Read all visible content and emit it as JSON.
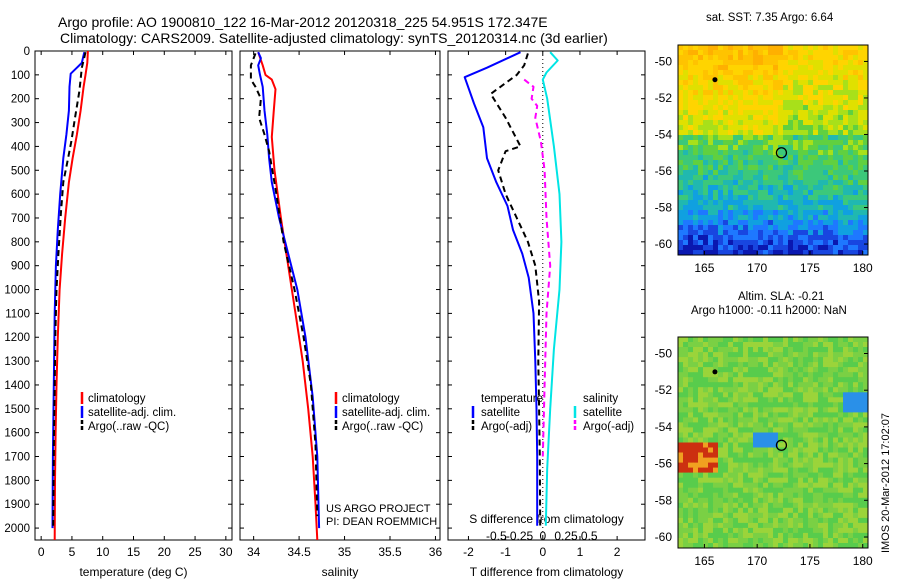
{
  "title": {
    "line1": "Argo profile: AO 1900810_122 16-Mar-2012 20120318_225 54.951S 172.347E",
    "line2": "Climatology: CARS2009. Satellite-adjusted climatology: synTS_20120314.nc (3d earlier)"
  },
  "credit": {
    "line1": "US ARGO PROJECT",
    "line2": "PI: DEAN ROEMMICH"
  },
  "stamp": "IMOS 20-Mar-2012 17:02:07",
  "colors": {
    "red": "#ff0000",
    "blue": "#0000ff",
    "black": "#000000",
    "cyan": "#00e5e5",
    "magenta": "#ff00ff"
  },
  "chart_data": [
    {
      "type": "line",
      "xlabel": "temperature (deg C)",
      "xlim": [
        -1,
        31
      ],
      "xticks": [
        "0",
        "5",
        "10",
        "15",
        "20",
        "25",
        "30"
      ],
      "xtick_values": [
        0,
        5,
        10,
        15,
        20,
        25,
        30
      ],
      "ylim": [
        0,
        2050
      ],
      "yticks": [
        "0",
        "100",
        "200",
        "300",
        "400",
        "500",
        "600",
        "700",
        "800",
        "900",
        "1000",
        "1100",
        "1200",
        "1300",
        "1400",
        "1500",
        "1600",
        "1700",
        "1800",
        "1900",
        "2000"
      ],
      "ytick_values": [
        0,
        100,
        200,
        300,
        400,
        500,
        600,
        700,
        800,
        900,
        1000,
        1100,
        1200,
        1300,
        1400,
        1500,
        1600,
        1700,
        1800,
        1900,
        2000
      ],
      "legend": [
        "climatology",
        "satellite-adj. clim.",
        "Argo(..raw -QC)"
      ],
      "series": [
        {
          "name": "climatology",
          "color": "red",
          "dash": false,
          "points": [
            [
              7.6,
              0
            ],
            [
              7.5,
              50
            ],
            [
              7.2,
              100
            ],
            [
              6.9,
              150
            ],
            [
              6.4,
              250
            ],
            [
              5.8,
              350
            ],
            [
              5.1,
              450
            ],
            [
              4.5,
              550
            ],
            [
              3.9,
              700
            ],
            [
              3.4,
              850
            ],
            [
              3.0,
              1000
            ],
            [
              2.7,
              1200
            ],
            [
              2.5,
              1400
            ],
            [
              2.35,
              1600
            ],
            [
              2.25,
              1800
            ],
            [
              2.2,
              2050
            ]
          ]
        },
        {
          "name": "satellite-adj. clim.",
          "color": "blue",
          "dash": false,
          "points": [
            [
              7.0,
              5
            ],
            [
              6.6,
              50
            ],
            [
              5.8,
              70
            ],
            [
              4.8,
              95
            ],
            [
              4.6,
              150
            ],
            [
              4.5,
              250
            ],
            [
              4.1,
              350
            ],
            [
              3.6,
              450
            ],
            [
              3.1,
              600
            ],
            [
              2.7,
              750
            ],
            [
              2.4,
              900
            ],
            [
              2.2,
              1100
            ],
            [
              2.1,
              1300
            ],
            [
              2.0,
              1500
            ],
            [
              1.9,
              1700
            ],
            [
              1.85,
              2000
            ]
          ]
        },
        {
          "name": "Argo(..raw -QC)",
          "color": "black",
          "dash": true,
          "points": [
            [
              7.2,
              5
            ],
            [
              6.9,
              40
            ],
            [
              6.6,
              70
            ],
            [
              6.4,
              120
            ],
            [
              6.2,
              170
            ],
            [
              5.5,
              280
            ],
            [
              4.9,
              380
            ],
            [
              4.3,
              460
            ],
            [
              3.6,
              550
            ],
            [
              3.2,
              680
            ],
            [
              2.8,
              850
            ],
            [
              2.5,
              1000
            ],
            [
              2.3,
              1200
            ],
            [
              2.2,
              1400
            ],
            [
              2.05,
              1650
            ],
            [
              2.0,
              1850
            ],
            [
              1.95,
              1990
            ]
          ]
        }
      ]
    },
    {
      "type": "line",
      "xlabel": "salinity",
      "xlim": [
        33.85,
        36.05
      ],
      "xticks": [
        "34",
        "34.5",
        "35",
        "35.5",
        "36"
      ],
      "xtick_values": [
        34,
        34.5,
        35,
        35.5,
        36
      ],
      "ylim": [
        0,
        2050
      ],
      "legend": [
        "climatology",
        "satellite-adj. clim.",
        "Argo(..raw -QC)"
      ],
      "series": [
        {
          "name": "climatology",
          "color": "red",
          "dash": false,
          "points": [
            [
              34.05,
              5
            ],
            [
              34.1,
              60
            ],
            [
              34.13,
              100
            ],
            [
              34.2,
              120
            ],
            [
              34.24,
              160
            ],
            [
              34.22,
              260
            ],
            [
              34.2,
              360
            ],
            [
              34.23,
              500
            ],
            [
              34.3,
              700
            ],
            [
              34.38,
              900
            ],
            [
              34.46,
              1100
            ],
            [
              34.54,
              1300
            ],
            [
              34.6,
              1500
            ],
            [
              34.65,
              1700
            ],
            [
              34.68,
              1900
            ],
            [
              34.7,
              2050
            ]
          ]
        },
        {
          "name": "satellite-adj. clim.",
          "color": "blue",
          "dash": false,
          "points": [
            [
              34.05,
              5
            ],
            [
              34.08,
              30
            ],
            [
              34.05,
              60
            ],
            [
              34.07,
              100
            ],
            [
              34.1,
              150
            ],
            [
              34.12,
              250
            ],
            [
              34.15,
              350
            ],
            [
              34.17,
              450
            ],
            [
              34.2,
              550
            ],
            [
              34.28,
              700
            ],
            [
              34.38,
              850
            ],
            [
              34.48,
              1000
            ],
            [
              34.57,
              1200
            ],
            [
              34.65,
              1450
            ],
            [
              34.7,
              1700
            ],
            [
              34.72,
              2000
            ]
          ]
        },
        {
          "name": "Argo(..raw -QC)",
          "color": "black",
          "dash": true,
          "points": [
            [
              34.02,
              10
            ],
            [
              33.97,
              60
            ],
            [
              33.97,
              120
            ],
            [
              34.02,
              150
            ],
            [
              34.08,
              200
            ],
            [
              34.06,
              280
            ],
            [
              34.12,
              350
            ],
            [
              34.17,
              420
            ],
            [
              34.25,
              600
            ],
            [
              34.33,
              800
            ],
            [
              34.45,
              1000
            ],
            [
              34.55,
              1200
            ],
            [
              34.63,
              1400
            ],
            [
              34.68,
              1650
            ],
            [
              34.7,
              1950
            ]
          ]
        }
      ]
    },
    {
      "type": "line",
      "xlabel": "T difference from climatology",
      "xlabel_top": "S difference  from climatology",
      "xlim": [
        -2.55,
        2.75
      ],
      "xticks": [
        "-2",
        "-1",
        "0",
        "1",
        "2"
      ],
      "xtick_values": [
        -2,
        -1,
        0,
        1,
        2
      ],
      "top_ticks": [
        "-0.5",
        "-0.25",
        "0",
        "0.25",
        "0.5"
      ],
      "top_tick_values": [
        -1.25,
        -0.625,
        0,
        0.625,
        1.25
      ],
      "legend": [
        "temperature",
        "satellite",
        "Argo(-adj)",
        "salinity",
        "satellite",
        "Argo(-adj)"
      ],
      "series": [
        {
          "name": "satellite",
          "group": "temperature",
          "color": "blue",
          "dash": false,
          "points": [
            [
              -0.6,
              5
            ],
            [
              -1.5,
              70
            ],
            [
              -2.1,
              110
            ],
            [
              -1.85,
              220
            ],
            [
              -1.6,
              320
            ],
            [
              -1.5,
              450
            ],
            [
              -1.25,
              550
            ],
            [
              -0.95,
              650
            ],
            [
              -0.8,
              750
            ],
            [
              -0.55,
              850
            ],
            [
              -0.38,
              950
            ],
            [
              -0.25,
              1100
            ],
            [
              -0.2,
              1300
            ],
            [
              -0.17,
              1500
            ],
            [
              -0.15,
              1700
            ],
            [
              -0.15,
              1990
            ]
          ]
        },
        {
          "name": "Argo(-adj)",
          "group": "temperature",
          "color": "black",
          "dash": true,
          "points": [
            [
              -0.4,
              10
            ],
            [
              -0.5,
              60
            ],
            [
              -0.7,
              100
            ],
            [
              -1.4,
              180
            ],
            [
              -1.0,
              280
            ],
            [
              -0.6,
              400
            ],
            [
              -1.0,
              420
            ],
            [
              -1.2,
              500
            ],
            [
              -1.0,
              600
            ],
            [
              -0.7,
              700
            ],
            [
              -0.4,
              800
            ],
            [
              -0.2,
              900
            ],
            [
              -0.1,
              1050
            ],
            [
              -0.12,
              1300
            ],
            [
              -0.1,
              1500
            ],
            [
              -0.08,
              1700
            ],
            [
              -0.07,
              1990
            ]
          ]
        },
        {
          "name": "satellite",
          "group": "salinity",
          "color": "cyan",
          "dash": false,
          "points": [
            [
              0.2,
              5
            ],
            [
              0.4,
              40
            ],
            [
              0.1,
              90
            ],
            [
              0.0,
              120
            ],
            [
              0.12,
              200
            ],
            [
              0.3,
              400
            ],
            [
              0.45,
              600
            ],
            [
              0.5,
              800
            ],
            [
              0.45,
              1000
            ],
            [
              0.3,
              1250
            ],
            [
              0.2,
              1500
            ],
            [
              0.12,
              1750
            ],
            [
              0.08,
              1990
            ]
          ]
        },
        {
          "name": "Argo(-adj)",
          "group": "salinity",
          "color": "magenta",
          "dash": true,
          "points": [
            [
              -0.5,
              120
            ],
            [
              -0.25,
              150
            ],
            [
              -0.3,
              200
            ],
            [
              -0.15,
              230
            ],
            [
              -0.2,
              280
            ],
            [
              -0.05,
              380
            ],
            [
              0.05,
              500
            ],
            [
              0.1,
              700
            ],
            [
              0.2,
              900
            ],
            [
              0.1,
              1100
            ],
            [
              0.05,
              1400
            ],
            [
              0.0,
              1700
            ]
          ]
        }
      ]
    },
    {
      "type": "heatmap",
      "title": "sat. SST: 7.35 Argo: 6.64",
      "xticks": [
        "165",
        "170",
        "175",
        "180"
      ],
      "xtick_values": [
        165,
        170,
        175,
        180
      ],
      "yticks": [
        "-50",
        "-52",
        "-54",
        "-56",
        "-58",
        "-60"
      ],
      "ytick_values": [
        -50,
        -52,
        -54,
        -56,
        -58,
        -60
      ],
      "xlim": [
        162.5,
        180.5
      ],
      "ylim": [
        -60.6,
        -49.1
      ],
      "marker": [
        172.3,
        -55.0
      ],
      "region_fractions": [
        0.6,
        0.12
      ]
    },
    {
      "type": "heatmap",
      "title": "Altim. SLA: -0.21",
      "title2": "Argo h1000: -0.11  h2000: NaN",
      "xticks": [
        "165",
        "170",
        "175",
        "180"
      ],
      "xtick_values": [
        165,
        170,
        175,
        180
      ],
      "yticks": [
        "-50",
        "-52",
        "-54",
        "-56",
        "-58",
        "-60"
      ],
      "ytick_values": [
        -50,
        -52,
        -54,
        -56,
        -58,
        -60
      ],
      "xlim": [
        162.5,
        180.5
      ],
      "ylim": [
        -60.6,
        -49.1
      ],
      "marker": [
        172.3,
        -55.0
      ]
    }
  ]
}
